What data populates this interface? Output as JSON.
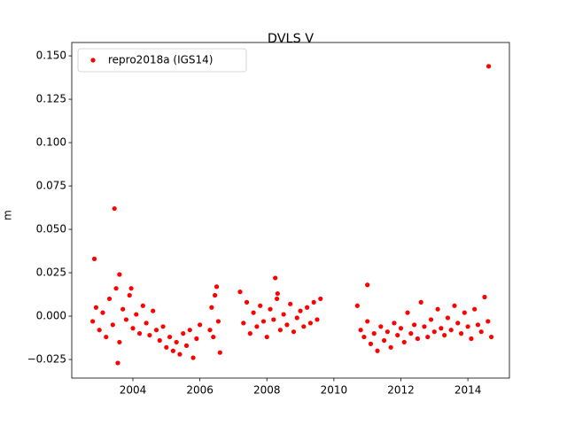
{
  "chart_data": {
    "type": "scatter",
    "title": "DVLS V",
    "y_label": "m",
    "legend_loc": "upper left",
    "xlim": [
      2002.175,
      2015.24
    ],
    "ylim": [
      -0.0357,
      0.1577
    ],
    "xticks": [
      2004,
      2006,
      2008,
      2010,
      2012,
      2014
    ],
    "yticks": [
      {
        "value": -0.025,
        "label": "−0.025"
      },
      {
        "value": 0,
        "label": "0.000"
      },
      {
        "value": 0.025,
        "label": "0.025"
      },
      {
        "value": 0.05,
        "label": "0.050"
      },
      {
        "value": 0.075,
        "label": "0.075"
      },
      {
        "value": 0.1,
        "label": "0.100"
      },
      {
        "value": 0.125,
        "label": "0.125"
      },
      {
        "value": 0.15,
        "label": "0.150"
      }
    ],
    "x": [
      2002.8,
      2002.9,
      2003.0,
      2003.1,
      2003.2,
      2003.3,
      2003.4,
      2003.5,
      2003.6,
      2003.7,
      2003.8,
      2003.9,
      2004.0,
      2004.1,
      2004.2,
      2004.3,
      2004.4,
      2004.5,
      2004.6,
      2004.7,
      2004.8,
      2004.9,
      2005.0,
      2005.1,
      2005.2,
      2005.3,
      2005.4,
      2005.5,
      2005.6,
      2005.7,
      2005.8,
      2005.9,
      2006.0,
      2002.85,
      2003.45,
      2003.55,
      2003.6,
      2003.95,
      2006.3,
      2006.35,
      2006.4,
      2006.45,
      2006.5,
      2006.55,
      2006.6,
      2007.2,
      2007.3,
      2007.4,
      2007.5,
      2007.6,
      2007.7,
      2007.8,
      2007.9,
      2008.0,
      2008.1,
      2008.2,
      2008.3,
      2008.4,
      2008.5,
      2008.6,
      2008.7,
      2008.8,
      2008.9,
      2009.0,
      2009.1,
      2009.2,
      2009.3,
      2009.4,
      2009.5,
      2009.6,
      2008.25,
      2008.32,
      2010.7,
      2010.8,
      2010.9,
      2011.0,
      2011.1,
      2011.2,
      2011.3,
      2011.4,
      2011.5,
      2011.6,
      2011.7,
      2011.8,
      2011.9,
      2012.0,
      2012.1,
      2012.2,
      2012.3,
      2012.4,
      2012.5,
      2012.6,
      2012.7,
      2012.8,
      2012.9,
      2013.0,
      2013.1,
      2013.2,
      2013.3,
      2013.4,
      2013.5,
      2013.6,
      2013.7,
      2013.8,
      2013.9,
      2014.0,
      2014.1,
      2014.2,
      2014.3,
      2014.4,
      2014.5,
      2014.6,
      2014.7,
      2011.0,
      2014.62
    ],
    "series": [
      {
        "name": "repro2018a (IGS14)",
        "color": "#ff0000",
        "values": [
          -0.003,
          0.005,
          -0.008,
          0.002,
          -0.012,
          0.01,
          -0.005,
          0.016,
          -0.015,
          0.004,
          -0.002,
          0.012,
          -0.007,
          0.001,
          -0.01,
          0.006,
          -0.004,
          -0.011,
          0.003,
          -0.008,
          -0.014,
          -0.006,
          -0.018,
          -0.012,
          -0.02,
          -0.015,
          -0.022,
          -0.01,
          -0.017,
          -0.008,
          -0.024,
          -0.013,
          -0.005,
          0.033,
          0.062,
          -0.027,
          0.024,
          0.016,
          -0.008,
          0.005,
          -0.012,
          0.012,
          0.017,
          -0.003,
          -0.021,
          0.014,
          -0.004,
          0.008,
          -0.01,
          0.002,
          -0.006,
          0.006,
          -0.003,
          -0.012,
          0.004,
          -0.002,
          0.01,
          -0.008,
          0.001,
          -0.005,
          0.007,
          -0.009,
          -0.001,
          0.003,
          -0.006,
          0.005,
          -0.004,
          0.008,
          -0.002,
          0.01,
          0.022,
          0.013,
          0.006,
          -0.008,
          -0.012,
          -0.003,
          -0.016,
          -0.01,
          -0.02,
          -0.006,
          -0.014,
          -0.009,
          -0.018,
          -0.004,
          -0.011,
          -0.007,
          -0.015,
          0.002,
          -0.01,
          -0.005,
          -0.013,
          0.008,
          -0.006,
          -0.012,
          -0.002,
          -0.009,
          0.004,
          -0.007,
          -0.011,
          -0.001,
          -0.008,
          0.006,
          -0.004,
          -0.01,
          0.002,
          -0.006,
          -0.013,
          0.004,
          -0.005,
          -0.009,
          0.011,
          -0.003,
          -0.012,
          0.018,
          0.144
        ]
      }
    ]
  }
}
